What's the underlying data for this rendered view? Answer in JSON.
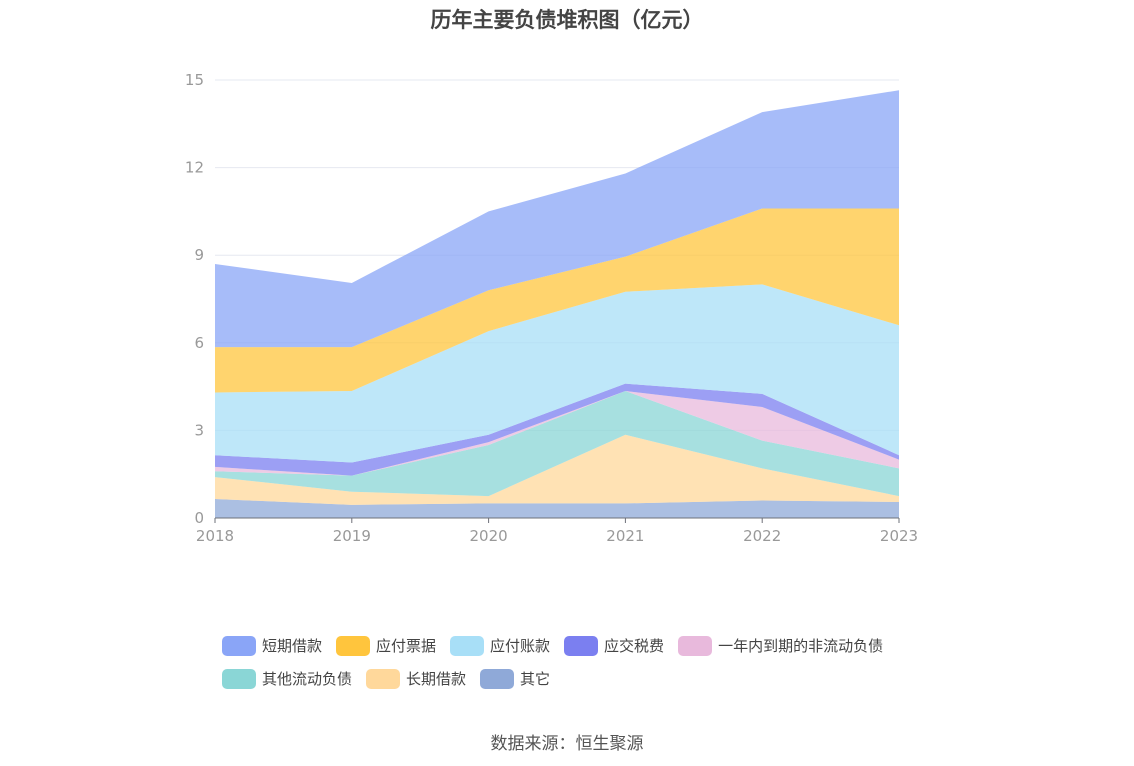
{
  "chart_data": {
    "type": "area",
    "stacked": true,
    "title": "历年主要负债堆积图（亿元）",
    "source": "数据来源：恒生聚源",
    "x": [
      "2018",
      "2019",
      "2020",
      "2021",
      "2022",
      "2023"
    ],
    "ylim": [
      0,
      15
    ],
    "yticks": [
      "0",
      "3",
      "6",
      "9",
      "12",
      "15"
    ],
    "grid": true,
    "legend_position": "bottom",
    "series": [
      {
        "name": "其它",
        "color": "#8fa9d8",
        "values": [
          0.65,
          0.45,
          0.5,
          0.5,
          0.6,
          0.55
        ]
      },
      {
        "name": "长期借款",
        "color": "#ffd89b",
        "values": [
          0.75,
          0.45,
          0.25,
          2.35,
          1.1,
          0.2
        ]
      },
      {
        "name": "其他流动负债",
        "color": "#8ad6d6",
        "values": [
          0.2,
          0.55,
          1.75,
          1.5,
          0.95,
          0.95
        ]
      },
      {
        "name": "一年内到期的非流动负债",
        "color": "#e8b9dc",
        "values": [
          0.15,
          0.0,
          0.1,
          0.0,
          1.15,
          0.3
        ]
      },
      {
        "name": "应交税费",
        "color": "#7b7ff0",
        "values": [
          0.4,
          0.45,
          0.25,
          0.25,
          0.45,
          0.15
        ]
      },
      {
        "name": "应付账款",
        "color": "#a8dff7",
        "values": [
          2.15,
          2.45,
          3.55,
          3.15,
          3.75,
          4.45
        ]
      },
      {
        "name": "应付票据",
        "color": "#ffc53d",
        "values": [
          1.55,
          1.5,
          1.4,
          1.2,
          2.6,
          4.0
        ]
      },
      {
        "name": "短期借款",
        "color": "#8aa5f7",
        "values": [
          2.85,
          2.2,
          2.7,
          2.85,
          3.3,
          4.05
        ]
      }
    ],
    "legend_order": [
      "短期借款",
      "应付票据",
      "应付账款",
      "应交税费",
      "一年内到期的非流动负债",
      "其他流动负债",
      "长期借款",
      "其它"
    ]
  }
}
